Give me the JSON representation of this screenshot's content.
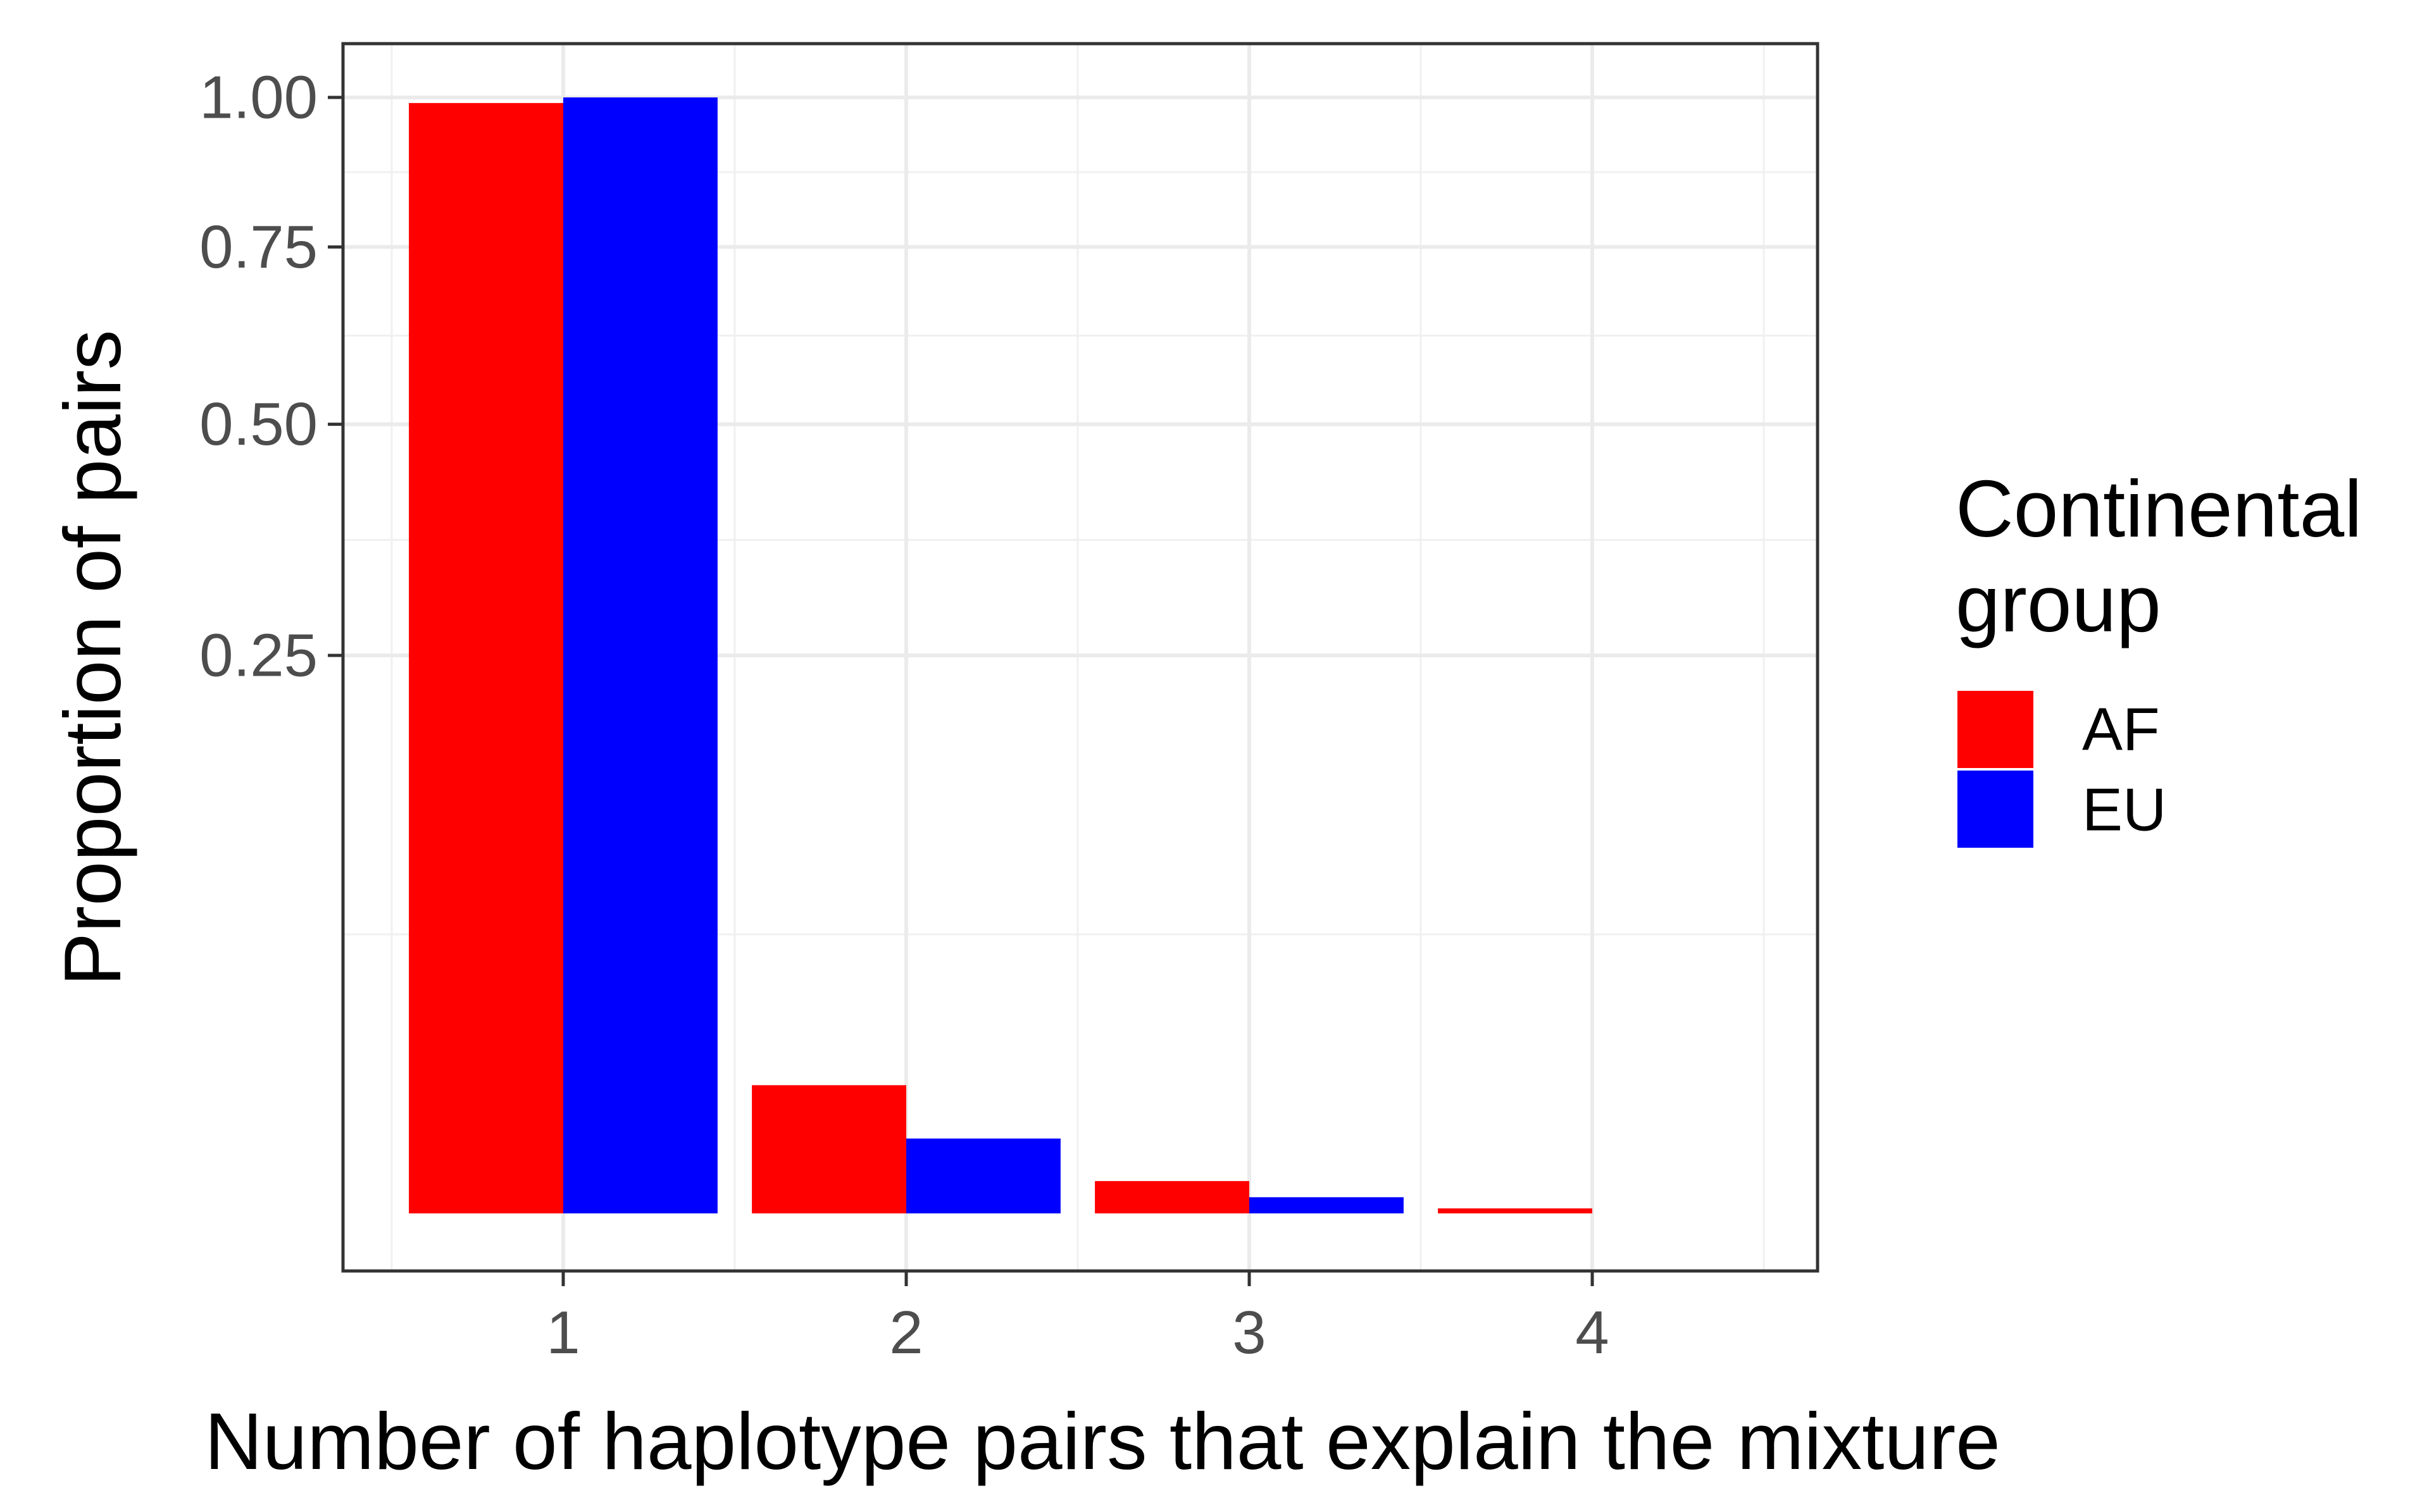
{
  "chart_data": {
    "type": "bar",
    "categories": [
      "1",
      "2",
      "3",
      "4"
    ],
    "series": [
      {
        "name": "AF",
        "color": "#ff0000",
        "values": [
          0.99,
          0.0132,
          0.00084,
          2e-05
        ]
      },
      {
        "name": "EU",
        "color": "#0000ff",
        "values": [
          1.0,
          0.0045,
          0.00021,
          0.0
        ]
      }
    ],
    "title": "",
    "xlabel": "Number of haplotype pairs that explain the mixture",
    "ylabel": "Proportion of pairs",
    "y_scale": "sqrt",
    "ylim": [
      0,
      1.0
    ],
    "y_ticks": [
      {
        "value": 0.25,
        "label": "0.25"
      },
      {
        "value": 0.5,
        "label": "0.50"
      },
      {
        "value": 0.75,
        "label": "0.75"
      },
      {
        "value": 1.0,
        "label": "1.00"
      }
    ],
    "grid": true,
    "legend": {
      "title_line1": "Continental",
      "title_line2": "group",
      "position": "right"
    }
  }
}
